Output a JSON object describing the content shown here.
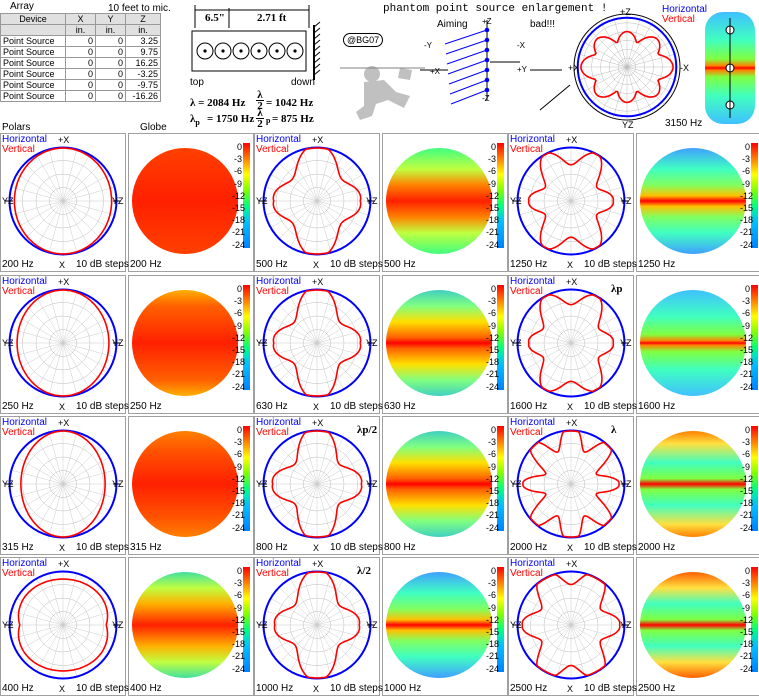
{
  "header": {
    "array_label": "Array",
    "distance_label": "10 feet to mic.",
    "table_columns": [
      "Device",
      "X",
      "Y",
      "Z"
    ],
    "table_units": [
      "",
      "in.",
      "in.",
      "in."
    ],
    "table_rows": [
      [
        "Point Source",
        "0",
        "0",
        "3.25"
      ],
      [
        "Point Source",
        "0",
        "0",
        "9.75"
      ],
      [
        "Point Source",
        "0",
        "0",
        "16.25"
      ],
      [
        "Point Source",
        "0",
        "0",
        "-3.25"
      ],
      [
        "Point Source",
        "0",
        "0",
        "-9.75"
      ],
      [
        "Point Source",
        "0",
        "0",
        "-16.26"
      ]
    ],
    "polars_label": "Polars",
    "globe_label": "Globe"
  },
  "diagram": {
    "spacing": "6.5\"",
    "length": "2.71 ft",
    "top_label": "top",
    "down_label": "down",
    "badge": "@BG07",
    "lambda_eq": "λ = 2084 Hz",
    "half_lambda_eq": "= 1042 Hz",
    "lambda_p_eq": "= 1750 Hz",
    "half_lambda_p_eq": "= 875 Hz",
    "lambda_symbol": "λ",
    "sub_p": "p",
    "enlargement_title": "phantom point source enlargement !",
    "aiming_label": "Aiming",
    "bad_label": "bad!!!",
    "enlargement_freq": "3150 Hz",
    "axis_labels": {
      "pz": "+Z",
      "nz": "-Z",
      "px": "+X",
      "nx": "-X",
      "py": "+Y",
      "ny": "-Y",
      "yz": "YZ",
      "x": "X"
    }
  },
  "legend": {
    "horizontal": "Horizontal",
    "vertical": "Vertical",
    "steps": "10 dB steps"
  },
  "colors": {
    "horizontal": "#0000ff",
    "vertical": "#ff0000",
    "grid": "#999999"
  },
  "scale_ticks": [
    "0",
    "-3",
    "-6",
    "-9",
    "-12",
    "-15",
    "-18",
    "-21",
    "-24"
  ],
  "panels": [
    {
      "freq": "200 Hz",
      "vshape": 0.9,
      "lobes": 0,
      "depth": 0.0,
      "globe": "flat",
      "marker": ""
    },
    {
      "freq": "500 Hz",
      "vshape": 0.62,
      "lobes": 4,
      "depth": 0.18,
      "globe": "band1",
      "marker": ""
    },
    {
      "freq": "1250 Hz",
      "vshape": 0.6,
      "lobes": 6,
      "depth": 0.18,
      "globe": "band3",
      "marker": ""
    },
    {
      "freq": "250 Hz",
      "vshape": 0.85,
      "lobes": 0,
      "depth": 0.0,
      "globe": "flat2",
      "marker": ""
    },
    {
      "freq": "630 Hz",
      "vshape": 0.6,
      "lobes": 4,
      "depth": 0.2,
      "globe": "band2",
      "marker": ""
    },
    {
      "freq": "1600 Hz",
      "vshape": 0.62,
      "lobes": 6,
      "depth": 0.16,
      "globe": "band4",
      "marker": "λp"
    },
    {
      "freq": "315 Hz",
      "vshape": 0.78,
      "lobes": 0,
      "depth": 0.0,
      "globe": "flat3",
      "marker": ""
    },
    {
      "freq": "800 Hz",
      "vshape": 0.6,
      "lobes": 4,
      "depth": 0.22,
      "globe": "band2",
      "marker": "λp/2"
    },
    {
      "freq": "2000 Hz",
      "vshape": 0.65,
      "lobes": 8,
      "depth": 0.24,
      "globe": "band5",
      "marker": "λ"
    },
    {
      "freq": "400 Hz",
      "vshape": 0.7,
      "lobes": 2,
      "depth": 0.1,
      "globe": "flat4",
      "marker": ""
    },
    {
      "freq": "1000 Hz",
      "vshape": 0.58,
      "lobes": 4,
      "depth": 0.2,
      "globe": "band3",
      "marker": "λ/2"
    },
    {
      "freq": "2500 Hz",
      "vshape": 0.7,
      "lobes": 6,
      "depth": 0.2,
      "globe": "band6",
      "marker": ""
    }
  ]
}
